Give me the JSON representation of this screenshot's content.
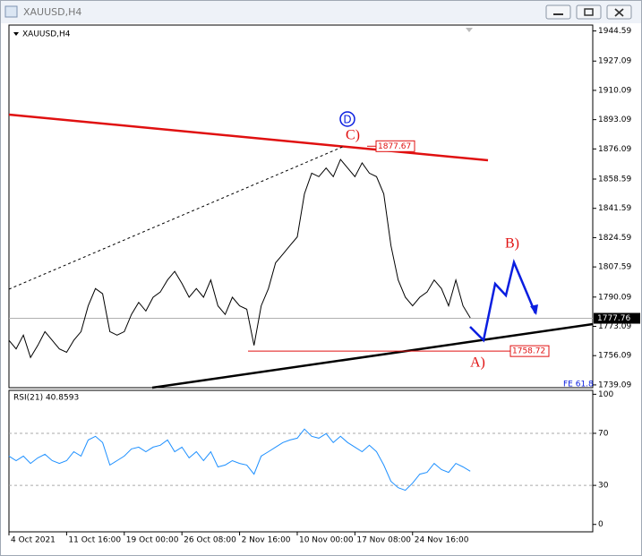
{
  "window": {
    "title": "XAUUSD,H4"
  },
  "chart_data": [
    {
      "type": "line",
      "title": "XAUUSD,H4",
      "series": [
        {
          "name": "XAUUSD",
          "color": "#000000",
          "values": [
            1765,
            1760,
            1768,
            1755,
            1762,
            1770,
            1765,
            1760,
            1758,
            1765,
            1770,
            1785,
            1795,
            1792,
            1770,
            1768,
            1770,
            1780,
            1787,
            1782,
            1790,
            1793,
            1800,
            1805,
            1798,
            1790,
            1795,
            1790,
            1800,
            1785,
            1780,
            1790,
            1785,
            1783,
            1762,
            1785,
            1795,
            1810,
            1815,
            1820,
            1825,
            1850,
            1862,
            1860,
            1865,
            1860,
            1870,
            1865,
            1860,
            1868,
            1862,
            1860,
            1850,
            1820,
            1800,
            1790,
            1785,
            1790,
            1793,
            1800,
            1795,
            1785,
            1800,
            1785,
            1778
          ]
        }
      ],
      "ylim": [
        1738,
        1948
      ],
      "yticks": [
        1944.59,
        1927.09,
        1910.09,
        1893.09,
        1876.09,
        1858.59,
        1841.59,
        1824.59,
        1807.59,
        1790.09,
        1773.09,
        1756.09,
        1739.09
      ],
      "xlim": [
        0,
        81
      ],
      "last_price": 1777.76,
      "price_labels": [
        1877.67,
        1758.72
      ],
      "annotations": [
        "D",
        "C)",
        "B)",
        "A)",
        "FE 61.8"
      ]
    },
    {
      "type": "line",
      "title": "RSI(21) 40.8593",
      "series": [
        {
          "name": "RSI(21)",
          "color": "#1e90ff",
          "values": [
            52.5,
            49.0,
            52.5,
            46.9,
            51.1,
            53.9,
            49.0,
            46.9,
            49.0,
            55.9,
            52.5,
            64.9,
            67.7,
            62.9,
            45.6,
            49.0,
            52.5,
            58.0,
            59.4,
            55.9,
            59.4,
            60.8,
            64.9,
            55.9,
            59.4,
            51.1,
            55.9,
            49.0,
            55.9,
            44.2,
            45.6,
            49.0,
            46.9,
            45.6,
            38.6,
            52.5,
            55.9,
            59.4,
            62.9,
            64.9,
            66.3,
            73.3,
            67.7,
            66.3,
            69.8,
            62.9,
            67.7,
            62.9,
            59.4,
            55.9,
            60.8,
            55.9,
            45.6,
            33.1,
            28.2,
            26.2,
            31.7,
            38.6,
            40.0,
            46.9,
            42.1,
            40.0,
            46.9,
            44.2,
            40.86
          ]
        }
      ],
      "ylim": [
        -5,
        103
      ],
      "yticks": [
        100,
        70,
        30,
        0
      ],
      "levels": [
        70,
        30
      ],
      "xlim": [
        0,
        81
      ],
      "xticks": [
        {
          "value": 0,
          "label": "4 Oct 2021"
        },
        {
          "value": 8,
          "label": "11 Oct 16:00"
        },
        {
          "value": 16,
          "label": "19 Oct 00:00"
        },
        {
          "value": 24,
          "label": "26 Oct 08:00"
        },
        {
          "value": 32,
          "label": "2 Nov 16:00"
        },
        {
          "value": 40,
          "label": "10 Nov 00:00"
        },
        {
          "value": 48,
          "label": "17 Nov 08:00"
        },
        {
          "value": 56,
          "label": "24 Nov 16:00"
        }
      ]
    }
  ]
}
